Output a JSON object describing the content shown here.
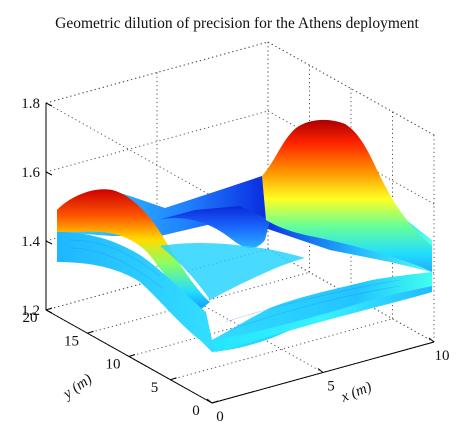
{
  "chart_data": {
    "type": "surface",
    "title": "Geometric dilution of precision for the Athens deployment",
    "xlabel": "x (m)",
    "ylabel": "y (m)",
    "zlabel": "",
    "xlim": [
      0,
      10
    ],
    "ylim": [
      0,
      20
    ],
    "zlim": [
      1.2,
      1.8
    ],
    "x_ticks": [
      "0",
      "5",
      "10"
    ],
    "y_ticks": [
      "0",
      "5",
      "10",
      "15",
      "20"
    ],
    "z_ticks": [
      "1.2",
      "1.4",
      "1.6",
      "1.8"
    ],
    "grid": true,
    "colormap": "jet",
    "colors": {
      "low": "#0000ff",
      "mid": "#00ffff",
      "high": "#ff0000"
    },
    "x": [
      0,
      1,
      2,
      3,
      4,
      5,
      6,
      7,
      8,
      9,
      10
    ],
    "y": [
      0,
      2,
      4,
      6,
      8,
      10,
      12,
      14,
      16,
      18,
      20
    ],
    "z": [
      [
        1.4,
        1.36,
        1.34,
        1.32,
        1.31,
        1.31,
        1.31,
        1.32,
        1.34,
        1.36,
        1.4
      ],
      [
        1.38,
        1.35,
        1.33,
        1.32,
        1.31,
        1.31,
        1.31,
        1.32,
        1.33,
        1.35,
        1.38
      ],
      [
        1.34,
        1.32,
        1.31,
        1.31,
        1.31,
        1.31,
        1.31,
        1.31,
        1.31,
        1.32,
        1.34
      ],
      [
        1.33,
        1.31,
        1.3,
        1.3,
        1.31,
        1.31,
        1.31,
        1.3,
        1.3,
        1.31,
        1.33
      ],
      [
        1.35,
        1.32,
        1.3,
        1.3,
        1.31,
        1.32,
        1.31,
        1.3,
        1.3,
        1.32,
        1.35
      ],
      [
        1.45,
        1.38,
        1.34,
        1.32,
        1.31,
        1.32,
        1.31,
        1.32,
        1.34,
        1.38,
        1.46
      ],
      [
        1.6,
        1.5,
        1.4,
        1.34,
        1.32,
        1.32,
        1.33,
        1.38,
        1.48,
        1.6,
        1.7
      ],
      [
        1.55,
        1.46,
        1.38,
        1.33,
        1.31,
        1.31,
        1.32,
        1.36,
        1.45,
        1.56,
        1.65
      ],
      [
        1.45,
        1.4,
        1.35,
        1.32,
        1.31,
        1.31,
        1.31,
        1.33,
        1.38,
        1.45,
        1.52
      ],
      [
        1.42,
        1.38,
        1.34,
        1.32,
        1.31,
        1.31,
        1.31,
        1.32,
        1.35,
        1.4,
        1.46
      ],
      [
        1.4,
        1.36,
        1.34,
        1.32,
        1.31,
        1.31,
        1.31,
        1.32,
        1.34,
        1.38,
        1.42
      ]
    ]
  }
}
